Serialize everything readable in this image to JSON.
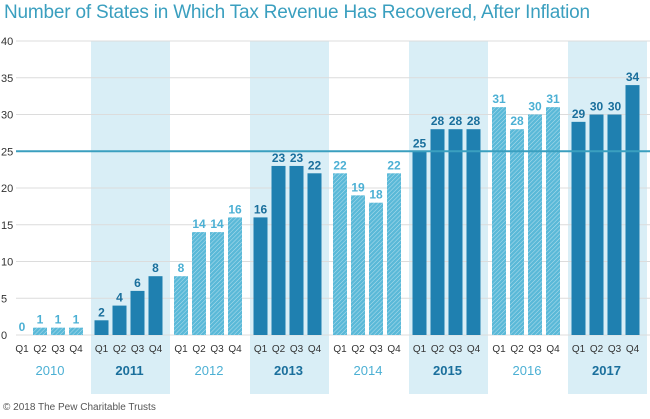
{
  "chart_data": {
    "type": "bar",
    "title": "Number of States in Which Tax Revenue Has Recovered, After Inflation",
    "xlabel": "",
    "ylabel": "",
    "ylim": [
      0,
      40
    ],
    "yticks": [
      0,
      5,
      10,
      15,
      20,
      25,
      30,
      35,
      40
    ],
    "reference_line": 25,
    "grid": true,
    "groups": [
      {
        "year": "2010",
        "quarters": [
          "Q1",
          "Q2",
          "Q3",
          "Q4"
        ],
        "values": [
          0,
          1,
          1,
          1
        ],
        "style": "hatched",
        "shaded": false
      },
      {
        "year": "2011",
        "quarters": [
          "Q1",
          "Q2",
          "Q3",
          "Q4"
        ],
        "values": [
          2,
          4,
          6,
          8
        ],
        "style": "solid",
        "shaded": true
      },
      {
        "year": "2012",
        "quarters": [
          "Q1",
          "Q2",
          "Q3",
          "Q4"
        ],
        "values": [
          8,
          14,
          14,
          16
        ],
        "style": "hatched",
        "shaded": false
      },
      {
        "year": "2013",
        "quarters": [
          "Q1",
          "Q2",
          "Q3",
          "Q4"
        ],
        "values": [
          16,
          23,
          23,
          22
        ],
        "style": "solid",
        "shaded": true
      },
      {
        "year": "2014",
        "quarters": [
          "Q1",
          "Q2",
          "Q3",
          "Q4"
        ],
        "values": [
          22,
          19,
          18,
          22
        ],
        "style": "hatched",
        "shaded": false
      },
      {
        "year": "2015",
        "quarters": [
          "Q1",
          "Q2",
          "Q3",
          "Q4"
        ],
        "values": [
          25,
          28,
          28,
          28
        ],
        "style": "solid",
        "shaded": true
      },
      {
        "year": "2016",
        "quarters": [
          "Q1",
          "Q2",
          "Q3",
          "Q4"
        ],
        "values": [
          31,
          28,
          30,
          31
        ],
        "style": "hatched",
        "shaded": false
      },
      {
        "year": "2017",
        "quarters": [
          "Q1",
          "Q2",
          "Q3",
          "Q4"
        ],
        "values": [
          29,
          30,
          30,
          34
        ],
        "style": "solid",
        "shaded": true
      }
    ]
  },
  "colors": {
    "title": "#3a9fbf",
    "solid_bar": "#1f80b0",
    "hatched_bar": "#5ab9d8",
    "band": "#d9eef6",
    "reference_line": "#3a9fbf",
    "grid": "#dcdcdc",
    "dark_label": "#1a6f9c",
    "light_label": "#4cb0d4"
  },
  "footer": "© 2018 The Pew Charitable Trusts"
}
